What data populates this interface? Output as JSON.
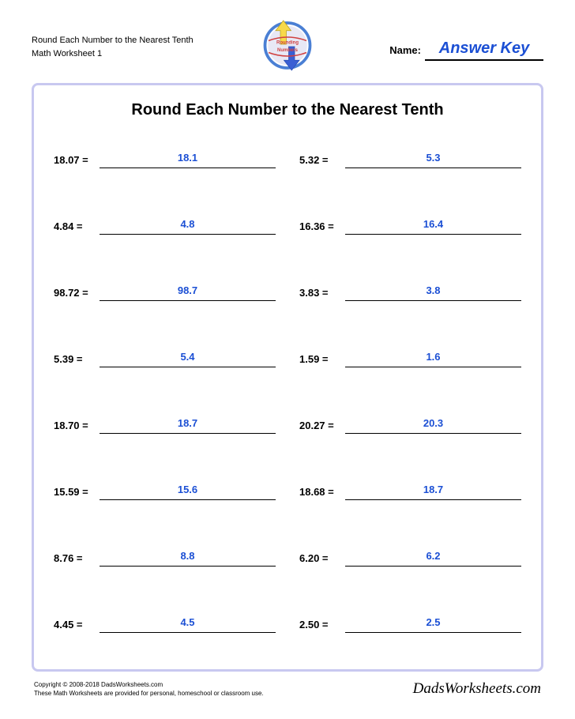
{
  "header": {
    "title_line1": "Round Each Number to the Nearest Tenth",
    "title_line2": "Math Worksheet 1",
    "name_label": "Name:",
    "answer_key": "Answer Key",
    "logo_text_top": "Rounding",
    "logo_text_bottom": "Numbers"
  },
  "main": {
    "title": "Round Each Number to the Nearest Tenth",
    "problems": [
      {
        "q": "18.07 =",
        "a": "18.1"
      },
      {
        "q": "5.32 =",
        "a": "5.3"
      },
      {
        "q": "4.84 =",
        "a": "4.8"
      },
      {
        "q": "16.36 =",
        "a": "16.4"
      },
      {
        "q": "98.72 =",
        "a": "98.7"
      },
      {
        "q": "3.83 =",
        "a": "3.8"
      },
      {
        "q": "5.39 =",
        "a": "5.4"
      },
      {
        "q": "1.59 =",
        "a": "1.6"
      },
      {
        "q": "18.70 =",
        "a": "18.7"
      },
      {
        "q": "20.27 =",
        "a": "20.3"
      },
      {
        "q": "15.59 =",
        "a": "15.6"
      },
      {
        "q": "18.68 =",
        "a": "18.7"
      },
      {
        "q": "8.76 =",
        "a": "8.8"
      },
      {
        "q": "6.20 =",
        "a": "6.2"
      },
      {
        "q": "4.45 =",
        "a": "4.5"
      },
      {
        "q": "2.50 =",
        "a": "2.5"
      }
    ]
  },
  "footer": {
    "copyright": "Copyright © 2008-2018 DadsWorksheets.com",
    "notice": "These Math Worksheets are provided for personal, homeschool or classroom use.",
    "brand": "DadsWorksheets.com"
  },
  "colors": {
    "answer_blue": "#1b4fd4",
    "border_violet": "#c8c8f0",
    "logo_yellow": "#f7d94a",
    "logo_blue": "#3a5fd4",
    "logo_ring_blue": "#4a7fd4"
  }
}
